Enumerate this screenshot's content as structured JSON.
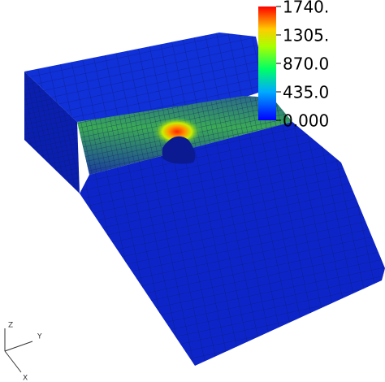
{
  "colorbar": {
    "range": [
      0,
      1740
    ],
    "ticks": [
      {
        "value": 1740,
        "label": "1740."
      },
      {
        "value": 1305,
        "label": "1305."
      },
      {
        "value": 870,
        "label": "870.0"
      },
      {
        "value": 435,
        "label": "435.0"
      },
      {
        "value": 0,
        "label": "0.000"
      }
    ]
  },
  "axes_triad": {
    "z": "Z",
    "y": "Y",
    "x": "X"
  }
}
